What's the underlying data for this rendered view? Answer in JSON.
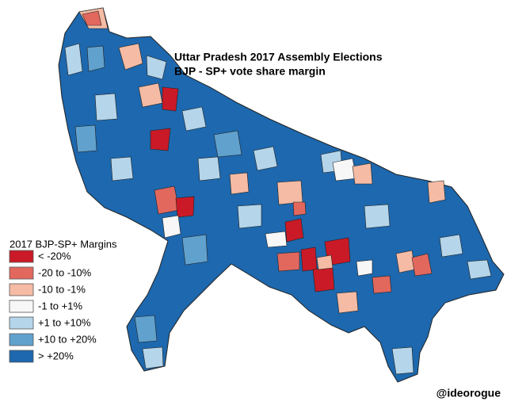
{
  "header": {
    "title_lines": [
      "Uttar Pradesh 2017 Assembly Elections",
      "BJP - SP+ vote share margin"
    ]
  },
  "legend": {
    "title": "2017 BJP-SP+ Margins",
    "items": [
      {
        "label": "< -20%",
        "color": "#ca1a27"
      },
      {
        "label": "-20 to -10%",
        "color": "#e2685e"
      },
      {
        "label": "-10 to -1%",
        "color": "#f5bba4"
      },
      {
        "label": "-1 to +1%",
        "color": "#f7f7f7"
      },
      {
        "label": "+1 to +10%",
        "color": "#b5d5ea"
      },
      {
        "label": "+10 to +20%",
        "color": "#61a1ce"
      },
      {
        "label": "> +20%",
        "color": "#1d68ae"
      }
    ]
  },
  "credit": "@ideorogue"
}
